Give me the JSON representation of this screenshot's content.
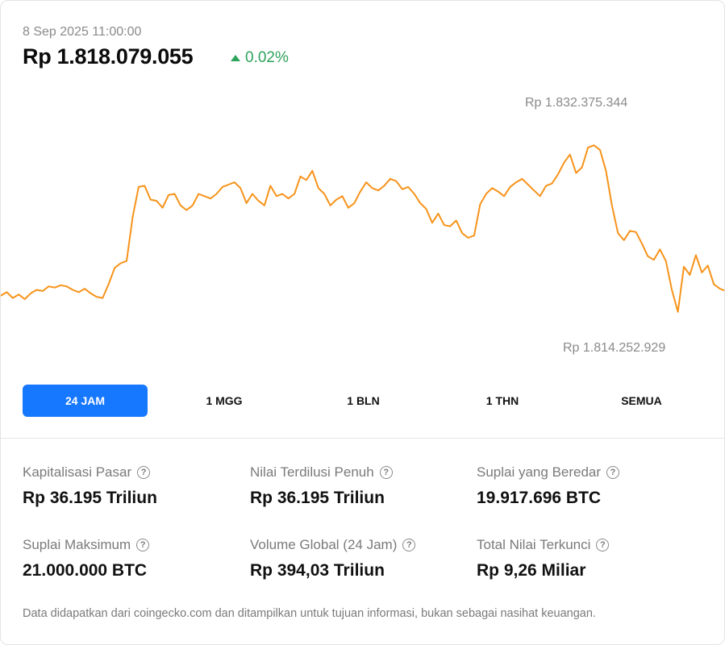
{
  "header": {
    "timestamp": "8 Sep 2025 11:00:00",
    "price": "Rp 1.818.079.055",
    "change": "0.02%",
    "change_color": "#2ea35a"
  },
  "chart_data": {
    "type": "line",
    "series_color": "#f7931a",
    "high_label": "Rp 1.832.375.344",
    "low_label": "Rp 1.814.252.929",
    "high": 1832375344,
    "low": 1814252929,
    "values": [
      1817200000,
      1817500000,
      1817000000,
      1817300000,
      1816900000,
      1817400000,
      1817700000,
      1817600000,
      1818000000,
      1817900000,
      1818100000,
      1818000000,
      1817700000,
      1817500000,
      1817800000,
      1817400000,
      1817100000,
      1817000000,
      1818200000,
      1819600000,
      1820000000,
      1820200000,
      1824000000,
      1826600000,
      1826700000,
      1825500000,
      1825400000,
      1824800000,
      1825900000,
      1826000000,
      1825000000,
      1824600000,
      1825000000,
      1826000000,
      1825800000,
      1825600000,
      1826000000,
      1826600000,
      1826800000,
      1827000000,
      1826500000,
      1825200000,
      1826000000,
      1825400000,
      1825000000,
      1826700000,
      1825800000,
      1826000000,
      1825600000,
      1826000000,
      1827500000,
      1827200000,
      1828000000,
      1826500000,
      1826000000,
      1825000000,
      1825500000,
      1825800000,
      1824800000,
      1825200000,
      1826200000,
      1827000000,
      1826500000,
      1826300000,
      1826700000,
      1827300000,
      1827100000,
      1826400000,
      1826600000,
      1826000000,
      1825200000,
      1824700000,
      1823500000,
      1824300000,
      1823300000,
      1823200000,
      1823700000,
      1822600000,
      1822200000,
      1822400000,
      1825100000,
      1826000000,
      1826500000,
      1826200000,
      1825800000,
      1826600000,
      1827000000,
      1827300000,
      1826800000,
      1826300000,
      1825800000,
      1826700000,
      1826900000,
      1827700000,
      1828700000,
      1829400000,
      1827800000,
      1828300000,
      1830000000,
      1830200000,
      1829800000,
      1828000000,
      1825000000,
      1822600000,
      1822000000,
      1822800000,
      1822700000,
      1821700000,
      1820600000,
      1820300000,
      1821200000,
      1820200000,
      1817700000,
      1815800000,
      1819700000,
      1819000000,
      1820700000,
      1819200000,
      1819800000,
      1818200000,
      1817800000,
      1817600000
    ]
  },
  "timeframes": [
    {
      "label": "24 JAM",
      "active": true
    },
    {
      "label": "1 MGG",
      "active": false
    },
    {
      "label": "1 BLN",
      "active": false
    },
    {
      "label": "1 THN",
      "active": false
    },
    {
      "label": "SEMUA",
      "active": false
    }
  ],
  "stats": [
    {
      "label": "Kapitalisasi Pasar",
      "value": "Rp 36.195 Triliun"
    },
    {
      "label": "Nilai Terdilusi Penuh",
      "value": "Rp 36.195 Triliun"
    },
    {
      "label": "Suplai yang Beredar",
      "value": "19.917.696 BTC"
    },
    {
      "label": "Suplai Maksimum",
      "value": "21.000.000 BTC"
    },
    {
      "label": "Volume Global (24 Jam)",
      "value": "Rp 394,03 Triliun"
    },
    {
      "label": "Total Nilai Terkunci",
      "value": "Rp 9,26 Miliar"
    }
  ],
  "help_icon_glyph": "?",
  "footer": {
    "disclaimer": "Data didapatkan dari coingecko.com dan ditampilkan untuk tujuan informasi, bukan sebagai nasihat keuangan."
  }
}
